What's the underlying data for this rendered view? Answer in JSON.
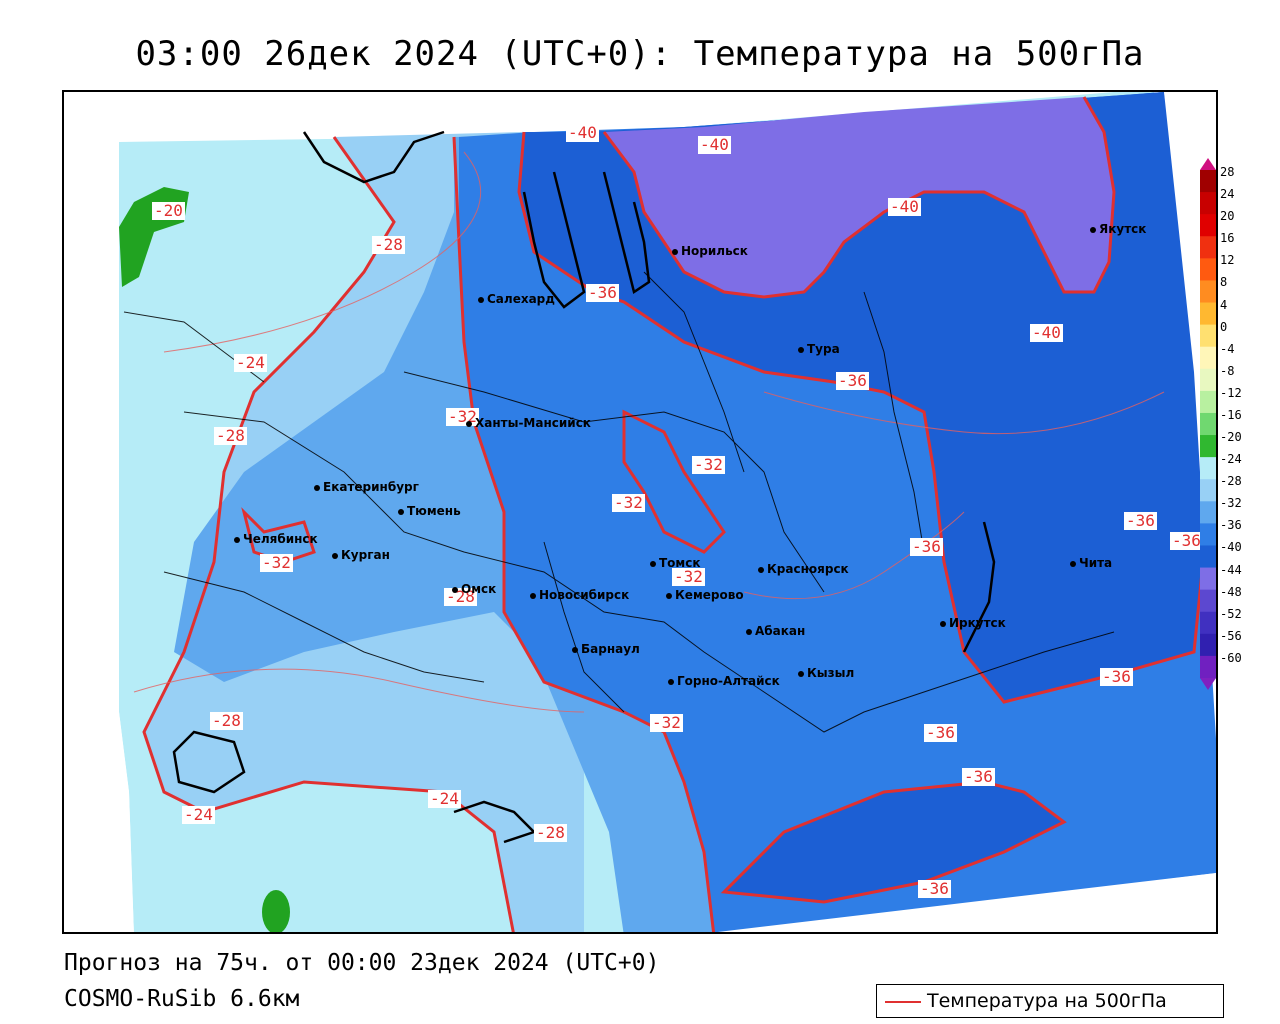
{
  "title": "03:00 26дек 2024 (UTC+0): Температура на 500гПа",
  "footer": {
    "forecast": "Прогноз на 75ч. от 00:00 23дек 2024 (UTC+0)",
    "model": "COSMO-RuSib 6.6км"
  },
  "legend": {
    "label": "Температура на 500гПа",
    "color": "#e03030"
  },
  "colors": {
    "contour": "#e03030",
    "t_minus20_24": "#b6ecf7",
    "t_minus24_28": "#98d0f5",
    "t_minus28_32": "#5fa8ee",
    "t_minus32_36": "#2f7ee6",
    "t_minus36_40": "#1c5fd4",
    "t_minus40_44": "#7e6ee6",
    "t_minus16_20": "#21a321"
  },
  "scale": {
    "labels": [
      "28",
      "24",
      "20",
      "16",
      "12",
      "8",
      "4",
      "0",
      "-4",
      "-8",
      "-12",
      "-16",
      "-20",
      "-24",
      "-28",
      "-32",
      "-36",
      "-40",
      "-44",
      "-48",
      "-52",
      "-56",
      "-60"
    ],
    "colors": [
      "#a00000",
      "#c80000",
      "#e00000",
      "#f03010",
      "#ff5a10",
      "#ff8c20",
      "#ffb830",
      "#ffe070",
      "#fff6b8",
      "#e8f8c0",
      "#b8f0a0",
      "#70d870",
      "#30b830",
      "#b6ecf7",
      "#98d0f5",
      "#5fa8ee",
      "#2f7ee6",
      "#1c5fd4",
      "#7e6ee6",
      "#5c48d0",
      "#4030c0",
      "#3020b0",
      "#7020c0"
    ]
  },
  "cities": [
    {
      "name": "Норильск"
    },
    {
      "name": "Якутск"
    },
    {
      "name": "Салехард"
    },
    {
      "name": "Тура"
    },
    {
      "name": "Ханты-Мансийск"
    },
    {
      "name": "Екатеринбург"
    },
    {
      "name": "Тюмень"
    },
    {
      "name": "Челябинск"
    },
    {
      "name": "Курган"
    },
    {
      "name": "Омск"
    },
    {
      "name": "Томск"
    },
    {
      "name": "Красноярск"
    },
    {
      "name": "Кемерово"
    },
    {
      "name": "Новосибирск"
    },
    {
      "name": "Абакан"
    },
    {
      "name": "Барнаул"
    },
    {
      "name": "Кызыл"
    },
    {
      "name": "Горно-Алтайск"
    },
    {
      "name": "Иркутск"
    },
    {
      "name": "Чита"
    }
  ],
  "contour_labels": [
    {
      "text": "-40"
    },
    {
      "text": "-40"
    },
    {
      "text": "-40"
    },
    {
      "text": "-40"
    },
    {
      "text": "-20"
    },
    {
      "text": "-28"
    },
    {
      "text": "-36"
    },
    {
      "text": "-24"
    },
    {
      "text": "-36"
    },
    {
      "text": "-28"
    },
    {
      "text": "-32"
    },
    {
      "text": "-32"
    },
    {
      "text": "-32"
    },
    {
      "text": "-36"
    },
    {
      "text": "-36"
    },
    {
      "text": "-36"
    },
    {
      "text": "-32"
    },
    {
      "text": "-32"
    },
    {
      "text": "-28"
    },
    {
      "text": "-36"
    },
    {
      "text": "-28"
    },
    {
      "text": "-32"
    },
    {
      "text": "-36"
    },
    {
      "text": "-24"
    },
    {
      "text": "-24"
    },
    {
      "text": "-28"
    },
    {
      "text": "-36"
    },
    {
      "text": "-36"
    }
  ]
}
